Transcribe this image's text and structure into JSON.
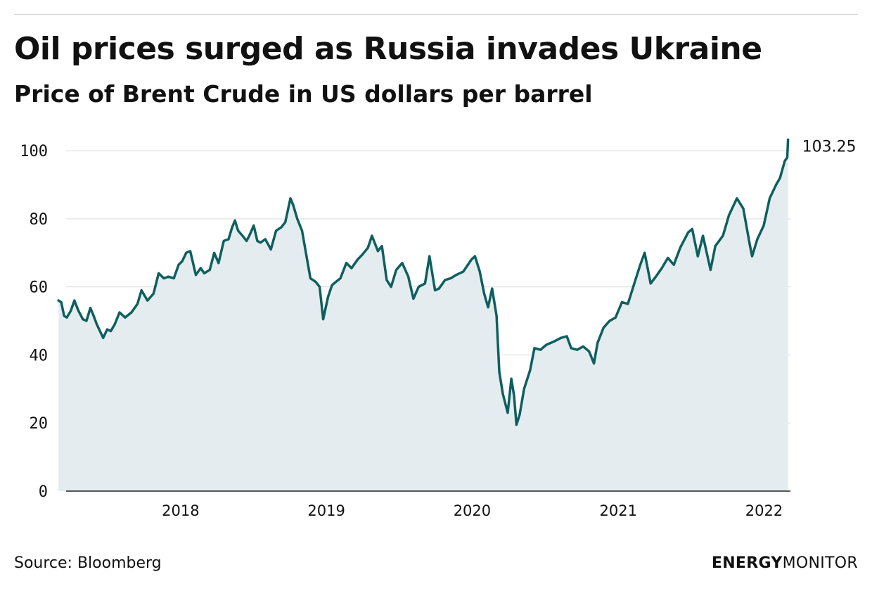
{
  "header": {
    "title": "Oil prices surged as Russia invades Ukraine",
    "subtitle": "Price of Brent Crude in US dollars per barrel"
  },
  "footer": {
    "source": "Source: Bloomberg",
    "brand_bold": "ENERGY",
    "brand_regular": "MONITOR"
  },
  "colors": {
    "line": "#0f5f5f",
    "area": "#e5ecef",
    "grid": "#d9d9d9",
    "axis": "#222222"
  },
  "chart_data": {
    "type": "area",
    "title": "Oil prices surged as Russia invades Ukraine",
    "subtitle": "Price of Brent Crude in US dollars per barrel",
    "xlabel": "",
    "ylabel": "",
    "ylim": [
      0,
      105
    ],
    "xlim": [
      "2017-02-20",
      "2022-03-08"
    ],
    "grid": true,
    "yticks": [
      0,
      20,
      40,
      60,
      80,
      100
    ],
    "xticks": [
      {
        "date": "2018-01-01",
        "label": "2018"
      },
      {
        "date": "2019-01-01",
        "label": "2019"
      },
      {
        "date": "2020-01-01",
        "label": "2020"
      },
      {
        "date": "2021-01-01",
        "label": "2021"
      },
      {
        "date": "2022-01-01",
        "label": "2022"
      }
    ],
    "end_label": "103.25",
    "series": [
      {
        "points": [
          [
            "2017-03-01",
            56.0
          ],
          [
            "2017-03-08",
            55.5
          ],
          [
            "2017-03-15",
            51.5
          ],
          [
            "2017-03-22",
            51.0
          ],
          [
            "2017-04-01",
            53.0
          ],
          [
            "2017-04-10",
            56.0
          ],
          [
            "2017-04-20",
            53.0
          ],
          [
            "2017-05-01",
            50.5
          ],
          [
            "2017-05-10",
            50.0
          ],
          [
            "2017-05-20",
            53.8
          ],
          [
            "2017-05-28",
            51.5
          ],
          [
            "2017-06-05",
            49.0
          ],
          [
            "2017-06-15",
            46.5
          ],
          [
            "2017-06-21",
            45.0
          ],
          [
            "2017-07-01",
            47.5
          ],
          [
            "2017-07-10",
            47.0
          ],
          [
            "2017-07-20",
            49.0
          ],
          [
            "2017-08-01",
            52.5
          ],
          [
            "2017-08-15",
            51.0
          ],
          [
            "2017-08-31",
            52.5
          ],
          [
            "2017-09-15",
            55.0
          ],
          [
            "2017-09-25",
            59.0
          ],
          [
            "2017-10-10",
            56.0
          ],
          [
            "2017-10-25",
            58.0
          ],
          [
            "2017-11-07",
            64.0
          ],
          [
            "2017-11-20",
            62.5
          ],
          [
            "2017-12-01",
            63.0
          ],
          [
            "2017-12-15",
            62.5
          ],
          [
            "2017-12-27",
            66.5
          ],
          [
            "2018-01-05",
            67.5
          ],
          [
            "2018-01-15",
            70.0
          ],
          [
            "2018-01-25",
            70.5
          ],
          [
            "2018-02-08",
            63.5
          ],
          [
            "2018-02-20",
            65.5
          ],
          [
            "2018-03-01",
            64.0
          ],
          [
            "2018-03-15",
            65.0
          ],
          [
            "2018-03-26",
            70.0
          ],
          [
            "2018-04-06",
            67.0
          ],
          [
            "2018-04-19",
            73.5
          ],
          [
            "2018-05-01",
            74.0
          ],
          [
            "2018-05-10",
            77.5
          ],
          [
            "2018-05-17",
            79.5
          ],
          [
            "2018-05-25",
            76.5
          ],
          [
            "2018-06-05",
            75.0
          ],
          [
            "2018-06-15",
            73.5
          ],
          [
            "2018-06-22",
            75.0
          ],
          [
            "2018-07-03",
            78.0
          ],
          [
            "2018-07-12",
            73.5
          ],
          [
            "2018-07-20",
            73.0
          ],
          [
            "2018-08-01",
            74.0
          ],
          [
            "2018-08-15",
            71.0
          ],
          [
            "2018-08-28",
            76.5
          ],
          [
            "2018-09-10",
            77.5
          ],
          [
            "2018-09-20",
            79.0
          ],
          [
            "2018-10-03",
            86.0
          ],
          [
            "2018-10-10",
            84.0
          ],
          [
            "2018-10-20",
            80.0
          ],
          [
            "2018-11-01",
            76.5
          ],
          [
            "2018-11-10",
            70.5
          ],
          [
            "2018-11-22",
            62.5
          ],
          [
            "2018-12-05",
            61.5
          ],
          [
            "2018-12-15",
            60.0
          ],
          [
            "2018-12-24",
            50.5
          ],
          [
            "2019-01-05",
            57.0
          ],
          [
            "2019-01-15",
            60.5
          ],
          [
            "2019-01-25",
            61.5
          ],
          [
            "2019-02-05",
            62.5
          ],
          [
            "2019-02-20",
            67.0
          ],
          [
            "2019-03-05",
            65.5
          ],
          [
            "2019-03-20",
            68.0
          ],
          [
            "2019-04-01",
            69.5
          ],
          [
            "2019-04-15",
            71.5
          ],
          [
            "2019-04-25",
            75.0
          ],
          [
            "2019-05-10",
            70.5
          ],
          [
            "2019-05-20",
            72.0
          ],
          [
            "2019-06-01",
            62.0
          ],
          [
            "2019-06-12",
            60.0
          ],
          [
            "2019-06-25",
            65.0
          ],
          [
            "2019-07-10",
            67.0
          ],
          [
            "2019-07-25",
            63.0
          ],
          [
            "2019-08-07",
            56.5
          ],
          [
            "2019-08-20",
            60.0
          ],
          [
            "2019-09-05",
            61.0
          ],
          [
            "2019-09-16",
            69.0
          ],
          [
            "2019-09-30",
            59.0
          ],
          [
            "2019-10-10",
            59.5
          ],
          [
            "2019-10-25",
            62.0
          ],
          [
            "2019-11-08",
            62.5
          ],
          [
            "2019-11-22",
            63.5
          ],
          [
            "2019-12-10",
            64.5
          ],
          [
            "2019-12-30",
            68.0
          ],
          [
            "2020-01-08",
            69.0
          ],
          [
            "2020-01-20",
            64.5
          ],
          [
            "2020-01-31",
            58.0
          ],
          [
            "2020-02-10",
            54.0
          ],
          [
            "2020-02-20",
            59.5
          ],
          [
            "2020-03-02",
            51.5
          ],
          [
            "2020-03-09",
            35.0
          ],
          [
            "2020-03-18",
            28.5
          ],
          [
            "2020-03-30",
            23.0
          ],
          [
            "2020-04-08",
            33.0
          ],
          [
            "2020-04-15",
            28.0
          ],
          [
            "2020-04-21",
            19.5
          ],
          [
            "2020-04-29",
            22.5
          ],
          [
            "2020-05-10",
            30.0
          ],
          [
            "2020-05-25",
            35.5
          ],
          [
            "2020-06-05",
            42.0
          ],
          [
            "2020-06-20",
            41.5
          ],
          [
            "2020-07-05",
            43.0
          ],
          [
            "2020-07-25",
            44.0
          ],
          [
            "2020-08-10",
            45.0
          ],
          [
            "2020-08-25",
            45.5
          ],
          [
            "2020-09-05",
            42.0
          ],
          [
            "2020-09-20",
            41.5
          ],
          [
            "2020-10-05",
            42.5
          ],
          [
            "2020-10-20",
            41.0
          ],
          [
            "2020-11-01",
            37.5
          ],
          [
            "2020-11-10",
            43.5
          ],
          [
            "2020-11-25",
            48.0
          ],
          [
            "2020-12-10",
            50.0
          ],
          [
            "2020-12-25",
            51.0
          ],
          [
            "2021-01-10",
            55.5
          ],
          [
            "2021-01-25",
            55.0
          ],
          [
            "2021-02-10",
            61.0
          ],
          [
            "2021-02-25",
            66.5
          ],
          [
            "2021-03-08",
            70.0
          ],
          [
            "2021-03-23",
            61.0
          ],
          [
            "2021-04-05",
            63.0
          ],
          [
            "2021-04-20",
            65.5
          ],
          [
            "2021-05-05",
            68.5
          ],
          [
            "2021-05-20",
            66.5
          ],
          [
            "2021-06-05",
            71.5
          ],
          [
            "2021-06-25",
            76.0
          ],
          [
            "2021-07-05",
            77.0
          ],
          [
            "2021-07-19",
            69.0
          ],
          [
            "2021-08-01",
            75.0
          ],
          [
            "2021-08-20",
            65.0
          ],
          [
            "2021-09-01",
            72.0
          ],
          [
            "2021-09-20",
            75.0
          ],
          [
            "2021-10-05",
            81.0
          ],
          [
            "2021-10-25",
            86.0
          ],
          [
            "2021-11-10",
            83.0
          ],
          [
            "2021-11-26",
            72.5
          ],
          [
            "2021-12-02",
            69.0
          ],
          [
            "2021-12-15",
            74.0
          ],
          [
            "2021-12-31",
            78.0
          ],
          [
            "2022-01-15",
            86.0
          ],
          [
            "2022-01-31",
            90.0
          ],
          [
            "2022-02-10",
            92.0
          ],
          [
            "2022-02-22",
            97.0
          ],
          [
            "2022-02-28",
            98.0
          ],
          [
            "2022-03-02",
            103.25
          ]
        ]
      }
    ]
  }
}
